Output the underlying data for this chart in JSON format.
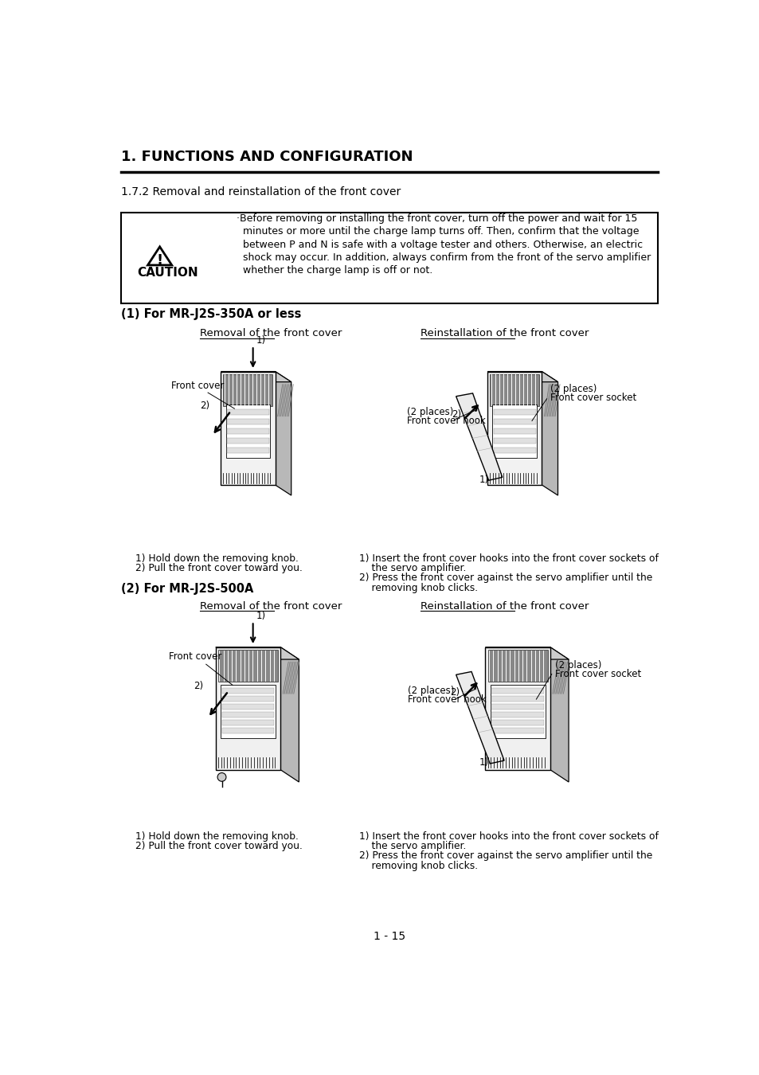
{
  "page_title": "1. FUNCTIONS AND CONFIGURATION",
  "section_title": "1.7.2 Removal and reinstallation of the front cover",
  "section1_title": "(1) For MR-J2S-350A or less",
  "removal_title": "Removal of the front cover",
  "reinstallation_title": "Reinstallation of the front cover",
  "section2_title": "(2) For MR-J2S-500A",
  "caution_lines": [
    "·Before removing or installing the front cover, turn off the power and wait for 15",
    "  minutes or more until the charge lamp turns off. Then, confirm that the voltage",
    "  between P and N is safe with a voltage tester and others. Otherwise, an electric",
    "  shock may occur. In addition, always confirm from the front of the servo amplifier",
    "  whether the charge lamp is off or not."
  ],
  "instructions_left_1": "1) Hold down the removing knob.",
  "instructions_left_2": "2) Pull the front cover toward you.",
  "instructions_right_1": "1) Insert the front cover hooks into the front cover sockets of",
  "instructions_right_1b": "    the servo amplifier.",
  "instructions_right_2": "2) Press the front cover against the servo amplifier until the",
  "instructions_right_2b": "    removing knob clicks.",
  "page_number": "1 - 15",
  "bg_color": "#ffffff",
  "text_color": "#000000"
}
